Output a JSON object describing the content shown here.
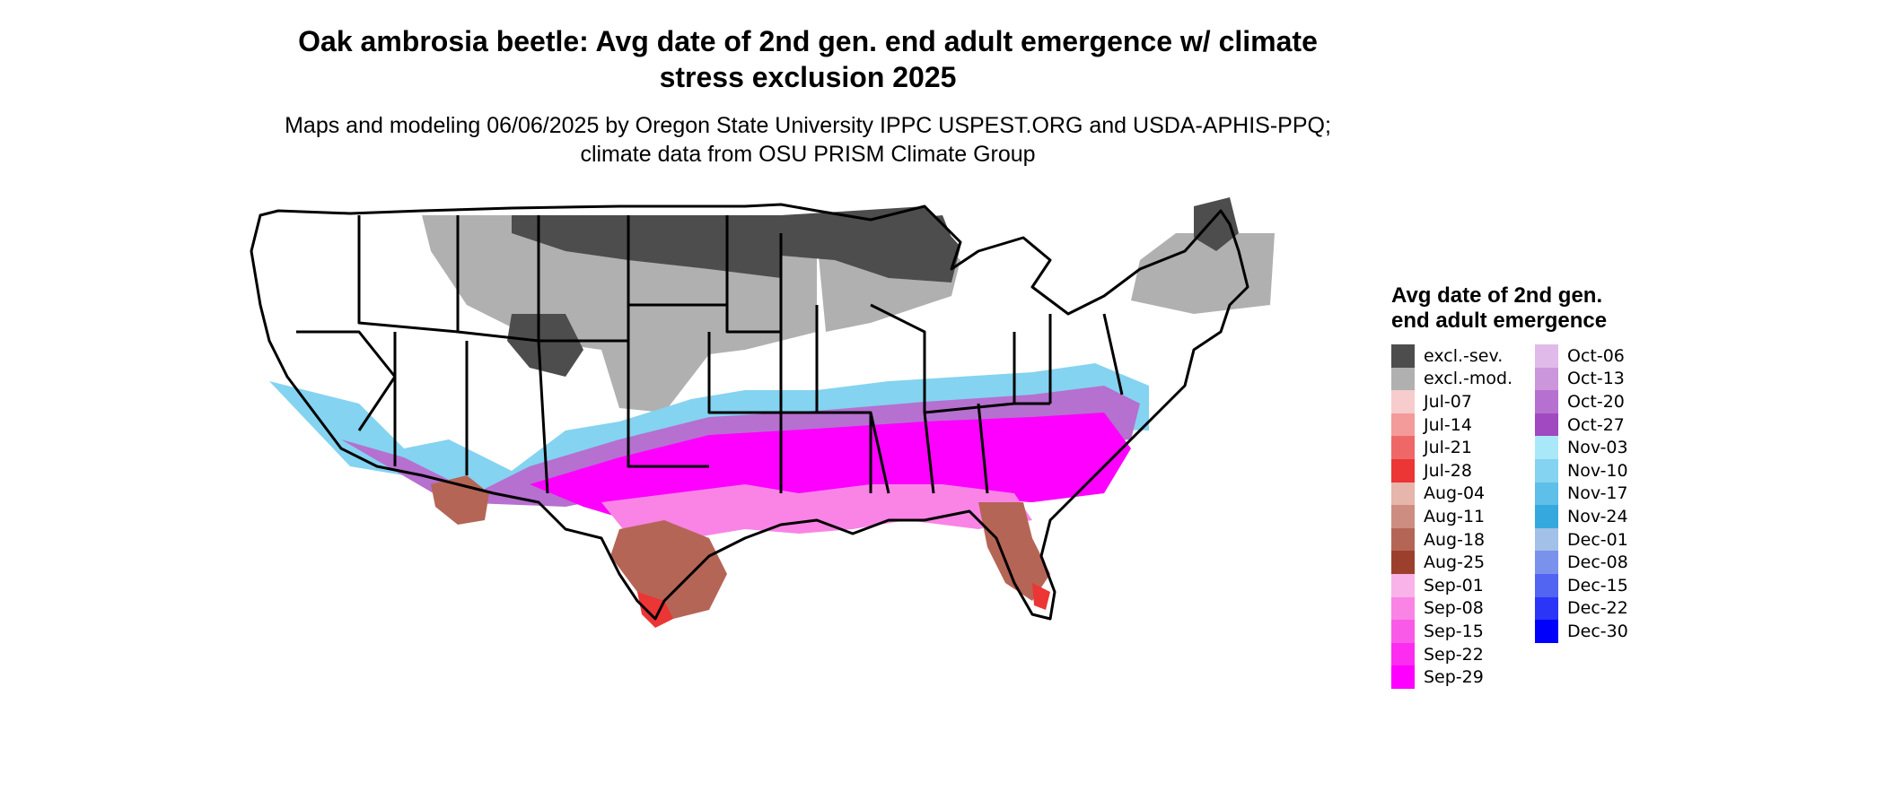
{
  "title": "Oak ambrosia beetle: Avg date of 2nd gen. end adult emergence w/ climate stress exclusion 2025",
  "subtitle": "Maps and modeling 06/06/2025 by Oregon State University IPPC USPEST.ORG and USDA-APHIS-PPQ; climate data from OSU PRISM Climate Group",
  "legend": {
    "title": "Avg date of 2nd gen. end adult emergence",
    "items": [
      {
        "label": "excl.-sev.",
        "color": "#4d4d4d"
      },
      {
        "label": "excl.-mod.",
        "color": "#b0b0b0"
      },
      {
        "label": "Jul-07",
        "color": "#f6cccc"
      },
      {
        "label": "Jul-14",
        "color": "#f39a9a"
      },
      {
        "label": "Jul-21",
        "color": "#ef6868"
      },
      {
        "label": "Jul-28",
        "color": "#ec3535"
      },
      {
        "label": "Aug-04",
        "color": "#e6b5ac"
      },
      {
        "label": "Aug-11",
        "color": "#cd8d81"
      },
      {
        "label": "Aug-18",
        "color": "#b56556"
      },
      {
        "label": "Aug-25",
        "color": "#9c3f2d"
      },
      {
        "label": "Sep-01",
        "color": "#f9b3e9"
      },
      {
        "label": "Sep-08",
        "color": "#f984e5"
      },
      {
        "label": "Sep-15",
        "color": "#fa5ae8"
      },
      {
        "label": "Sep-22",
        "color": "#fc2df0"
      },
      {
        "label": "Sep-29",
        "color": "#fd00ff"
      },
      {
        "label": "Oct-06",
        "color": "#e0bbe9"
      },
      {
        "label": "Oct-13",
        "color": "#cc96dc"
      },
      {
        "label": "Oct-20",
        "color": "#b670cf"
      },
      {
        "label": "Oct-27",
        "color": "#a049c0"
      },
      {
        "label": "Nov-03",
        "color": "#a9e8f8"
      },
      {
        "label": "Nov-10",
        "color": "#84d3f0"
      },
      {
        "label": "Nov-17",
        "color": "#5ebfe8"
      },
      {
        "label": "Nov-24",
        "color": "#35a9dd"
      },
      {
        "label": "Dec-01",
        "color": "#a2c0e8"
      },
      {
        "label": "Dec-08",
        "color": "#7a92ec"
      },
      {
        "label": "Dec-15",
        "color": "#5264f2"
      },
      {
        "label": "Dec-22",
        "color": "#2a35f7"
      },
      {
        "label": "Dec-30",
        "color": "#0000fb"
      }
    ]
  },
  "map": {
    "region": "contiguous-united-states",
    "projection": "lambert-conformal-conic",
    "state_outline_color": "#000000",
    "background_color": "#ffffff"
  }
}
